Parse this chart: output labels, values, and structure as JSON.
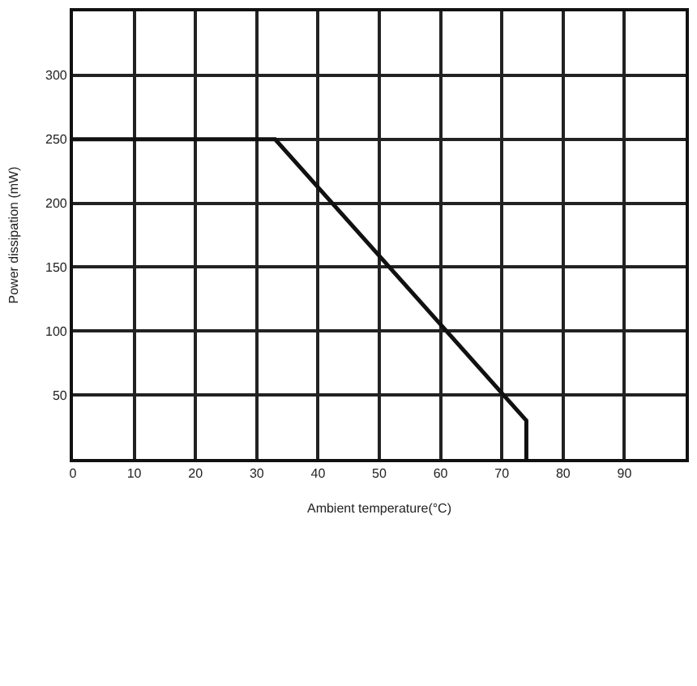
{
  "chart_data": {
    "type": "line",
    "xlabel": "Ambient temperature(°C)",
    "ylabel": "Power dissipation (mW)",
    "x": [
      0,
      33,
      74,
      74
    ],
    "series": [
      {
        "color": "#111111",
        "values": [
          250,
          250,
          30,
          0
        ]
      }
    ],
    "xlim": [
      0,
      100
    ],
    "ylim": [
      0,
      350
    ],
    "xticks": [
      0,
      10,
      20,
      30,
      40,
      50,
      60,
      70,
      80,
      90
    ],
    "yticks": [
      50,
      100,
      150,
      200,
      250,
      300
    ],
    "grid": true,
    "legend": false,
    "marker": "none",
    "line_style": "solid"
  }
}
